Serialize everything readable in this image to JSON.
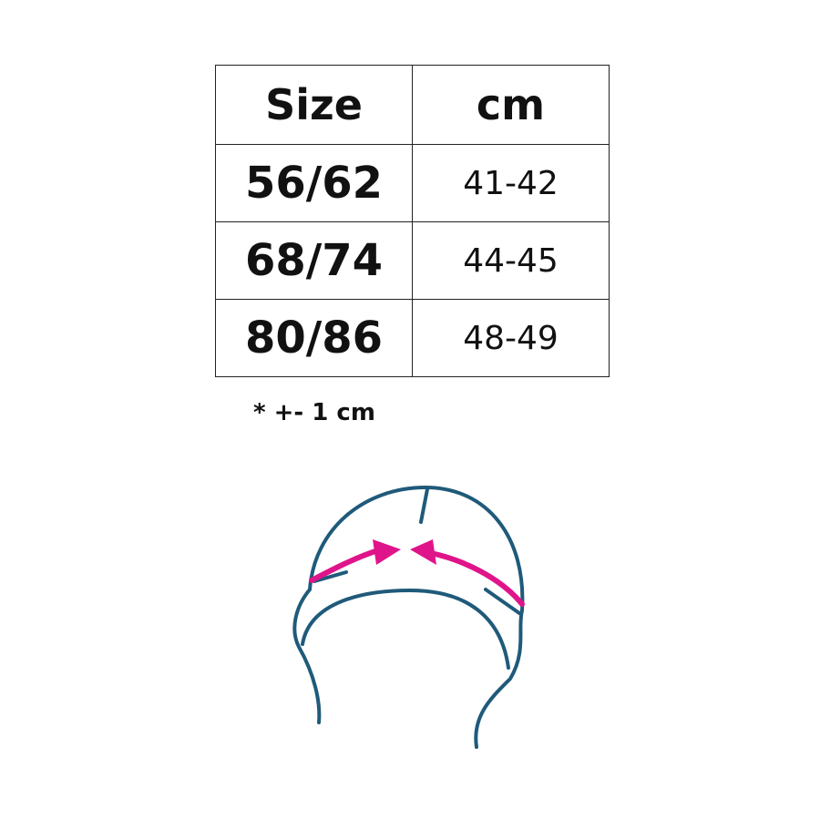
{
  "table": {
    "headers": [
      "Size",
      "cm"
    ],
    "rows": [
      [
        "56/62",
        "41-42"
      ],
      [
        "68/74",
        "44-45"
      ],
      [
        "80/86",
        "48-49"
      ]
    ]
  },
  "note": "* +- 1 cm",
  "colors": {
    "hat_outline": "#1f5a7a",
    "measure_arrow": "#e0148a"
  }
}
